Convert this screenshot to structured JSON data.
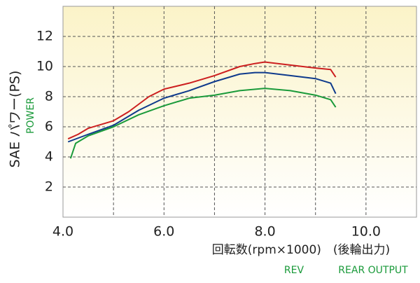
{
  "chart_data": {
    "type": "line",
    "ylabel": "SAE パワー(PS)",
    "ylabel_en": "POWER",
    "xlabel": "回転数(rpm×1000)　(後輪出力)",
    "xlabel_en_1": "REV",
    "xlabel_en_2": "REAR OUTPUT",
    "xlim": [
      4.0,
      11.0
    ],
    "ylim": [
      0,
      14
    ],
    "xticks": [
      {
        "value": 4,
        "label": "4.0"
      },
      {
        "value": 5,
        "label": null
      },
      {
        "value": 6,
        "label": "6.0"
      },
      {
        "value": 7,
        "label": null
      },
      {
        "value": 8,
        "label": "8.0"
      },
      {
        "value": 9,
        "label": null
      },
      {
        "value": 10,
        "label": "10.0"
      }
    ],
    "yticks": [
      2,
      4,
      6,
      8,
      10,
      12
    ],
    "grid": true,
    "series": [
      {
        "color": "#cc1f1f",
        "x": [
          4.1,
          4.3,
          4.5,
          5.0,
          5.3,
          5.7,
          6.0,
          6.5,
          7.0,
          7.5,
          7.8,
          8.0,
          8.5,
          9.0,
          9.3,
          9.4
        ],
        "values": [
          5.2,
          5.5,
          5.9,
          6.4,
          7.0,
          8.0,
          8.5,
          8.9,
          9.4,
          10.0,
          10.2,
          10.3,
          10.1,
          9.9,
          9.8,
          9.3
        ]
      },
      {
        "color": "#0e3a8c",
        "x": [
          4.1,
          4.5,
          5.0,
          5.5,
          6.0,
          6.5,
          7.0,
          7.5,
          7.8,
          8.0,
          8.5,
          9.0,
          9.3,
          9.4
        ],
        "values": [
          5.0,
          5.5,
          6.1,
          7.1,
          7.9,
          8.4,
          9.0,
          9.5,
          9.6,
          9.6,
          9.4,
          9.2,
          8.9,
          8.2
        ]
      },
      {
        "color": "#1a9a3a",
        "x": [
          4.15,
          4.25,
          4.5,
          5.0,
          5.5,
          6.0,
          6.5,
          7.0,
          7.5,
          8.0,
          8.5,
          9.0,
          9.3,
          9.4
        ],
        "values": [
          3.9,
          4.9,
          5.4,
          6.0,
          6.8,
          7.4,
          7.9,
          8.1,
          8.4,
          8.55,
          8.4,
          8.1,
          7.8,
          7.3
        ]
      }
    ]
  }
}
